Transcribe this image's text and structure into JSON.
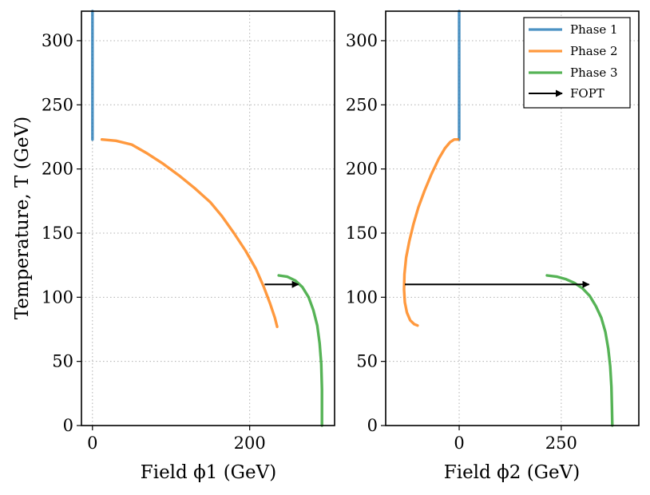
{
  "chart_data": [
    {
      "type": "line",
      "xlabel": "Field ϕ1 (GeV)",
      "ylabel": "Temperature, T (GeV)",
      "xlim": [
        -14,
        308
      ],
      "ylim": [
        0,
        323
      ],
      "xticks": [
        0,
        200
      ],
      "yticks": [
        0,
        50,
        100,
        150,
        200,
        250,
        300
      ],
      "grid": true,
      "series": [
        {
          "name": "Phase 1",
          "color": "#1f77b4",
          "x": [
            0,
            0
          ],
          "y": [
            223,
            323
          ]
        },
        {
          "name": "Phase 2",
          "color": "#ff7f0e",
          "x": [
            12,
            30,
            50,
            70,
            90,
            110,
            130,
            150,
            165,
            180,
            195,
            208,
            218,
            226,
            232,
            235
          ],
          "y": [
            223,
            222,
            219,
            212,
            204,
            195,
            185,
            174,
            163,
            150,
            136,
            122,
            108,
            95,
            84,
            77
          ]
        },
        {
          "name": "Phase 3",
          "color": "#2ca02c",
          "x": [
            237,
            248,
            258,
            267,
            275,
            281,
            286,
            289,
            291,
            292,
            292
          ],
          "y": [
            117,
            116,
            113,
            108,
            100,
            90,
            78,
            64,
            48,
            28,
            0
          ]
        }
      ],
      "arrows": [
        {
          "name": "FOPT",
          "x_from": 219,
          "x_to": 262,
          "y": 110
        }
      ]
    },
    {
      "type": "line",
      "xlabel": "Field ϕ2 (GeV)",
      "ylabel": "",
      "xlim": [
        -180,
        440
      ],
      "ylim": [
        0,
        323
      ],
      "xticks": [
        0,
        250
      ],
      "yticks": [
        0,
        50,
        100,
        150,
        200,
        250,
        300
      ],
      "grid": true,
      "legend": {
        "position": "top-right"
      },
      "series": [
        {
          "name": "Phase 1",
          "color": "#1f77b4",
          "x": [
            0,
            0
          ],
          "y": [
            223,
            323
          ]
        },
        {
          "name": "Phase 2",
          "color": "#ff7f0e",
          "x": [
            -3,
            -12,
            -22,
            -35,
            -50,
            -68,
            -85,
            -100,
            -112,
            -122,
            -130,
            -134,
            -135,
            -133,
            -128,
            -120,
            -110,
            -102
          ],
          "y": [
            223,
            223,
            221,
            216,
            208,
            196,
            183,
            170,
            157,
            144,
            131,
            118,
            106,
            96,
            88,
            82,
            79,
            78
          ]
        },
        {
          "name": "Phase 3",
          "color": "#2ca02c",
          "x": [
            215,
            240,
            262,
            283,
            302,
            320,
            335,
            348,
            358,
            365,
            370,
            373,
            374,
            375
          ],
          "y": [
            117,
            116,
            114,
            111,
            107,
            101,
            93,
            84,
            73,
            60,
            46,
            30,
            15,
            0
          ]
        }
      ],
      "arrows": [
        {
          "name": "FOPT",
          "x_from": -133,
          "x_to": 318,
          "y": 110
        }
      ]
    }
  ]
}
